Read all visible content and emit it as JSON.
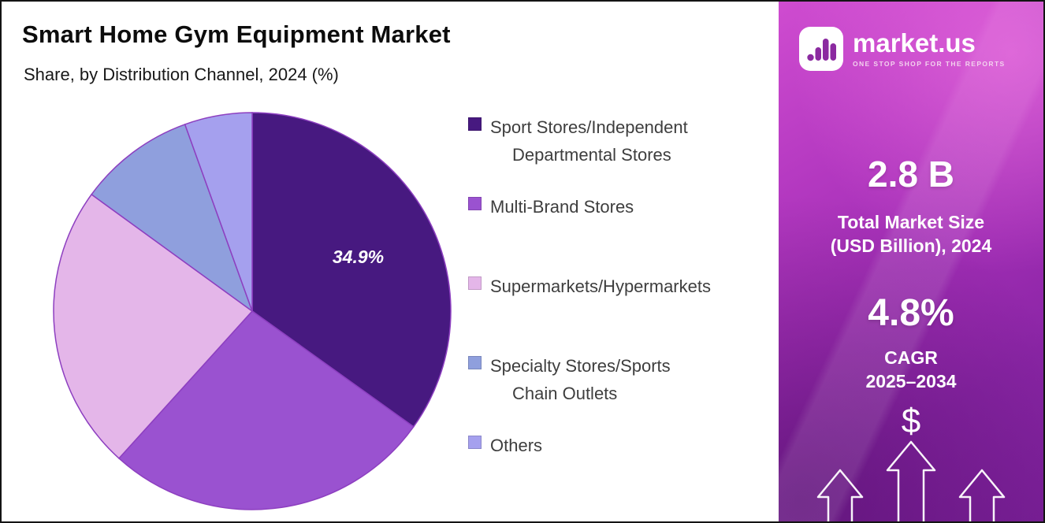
{
  "header": {
    "title": "Smart Home Gym Equipment Market",
    "subtitle": "Share, by Distribution Channel, 2024 (%)"
  },
  "chart_data": {
    "type": "pie",
    "title": "Smart Home Gym Equipment Market",
    "subtitle": "Share, by Distribution Channel, 2024 (%)",
    "direction": "clockwise",
    "start_angle_deg": 0,
    "stroke_color": "#8d3fc0",
    "legend_position": "right",
    "center_label": {
      "text": "34.9%",
      "slice_index": 0,
      "radius_frac": 0.6
    },
    "slices": [
      {
        "label": "Sport Stores/Independent Departmental Stores",
        "legend_lines": [
          "Sport Stores/Independent",
          "Departmental Stores"
        ],
        "value": 34.9,
        "color": "#471980"
      },
      {
        "label": "Multi-Brand Stores",
        "legend_lines": [
          "Multi-Brand Stores"
        ],
        "value": 26.8,
        "color": "#9a52d0"
      },
      {
        "label": "Supermarkets/Hypermarkets",
        "legend_lines": [
          "Supermarkets/Hypermarkets"
        ],
        "value": 23.3,
        "color": "#e4b6e9"
      },
      {
        "label": "Specialty Stores/Sports Chain Outlets",
        "legend_lines": [
          "Specialty Stores/Sports",
          "Chain Outlets"
        ],
        "value": 9.5,
        "color": "#8f9fdd"
      },
      {
        "label": "Others",
        "legend_lines": [
          "Others"
        ],
        "value": 5.5,
        "color": "#a5a0ee"
      }
    ]
  },
  "sidebar": {
    "logo": {
      "brand": "market.us",
      "tagline": "ONE STOP SHOP FOR THE REPORTS"
    },
    "stats": [
      {
        "value": "2.8 B",
        "label_line1": "Total Market Size",
        "label_line2": "(USD Billion), 2024"
      },
      {
        "value": "4.8%",
        "label_line1": "CAGR",
        "label_line2": "2025–2034"
      }
    ],
    "dollar_symbol": "$"
  }
}
